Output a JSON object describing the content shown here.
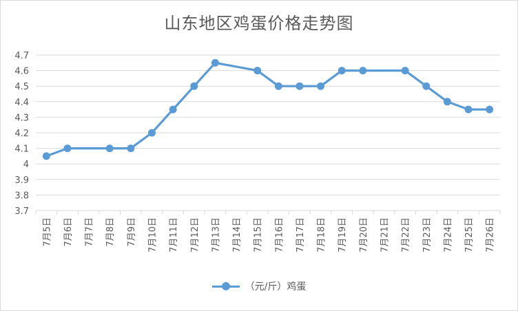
{
  "chart_data": {
    "type": "line",
    "title": "山东地区鸡蛋价格走势图",
    "categories": [
      "7月5日",
      "7月6日",
      "7月7日",
      "7月8日",
      "7月9日",
      "7月10日",
      "7月11日",
      "7月12日",
      "7月13日",
      "7月14日",
      "7月15日",
      "7月16日",
      "7月17日",
      "7月18日",
      "7月19日",
      "7月20日",
      "7月21日",
      "7月22日",
      "7月23日",
      "7月24日",
      "7月25日",
      "7月26日"
    ],
    "series": [
      {
        "name": "（元/斤）鸡蛋",
        "color": "#5b9bd5",
        "values": [
          4.05,
          4.1,
          null,
          4.1,
          4.1,
          4.2,
          4.35,
          4.5,
          4.65,
          null,
          4.6,
          4.5,
          4.5,
          4.5,
          4.6,
          4.6,
          null,
          4.6,
          4.5,
          4.4,
          4.35,
          4.35
        ]
      }
    ],
    "y_ticks": [
      "4.7",
      "4.6",
      "4.5",
      "4.4",
      "4.3",
      "4.2",
      "4.1",
      "4",
      "3.9",
      "3.8",
      "3.7"
    ],
    "ylim": [
      3.7,
      4.7
    ],
    "grid": true,
    "legend_position": "bottom"
  }
}
